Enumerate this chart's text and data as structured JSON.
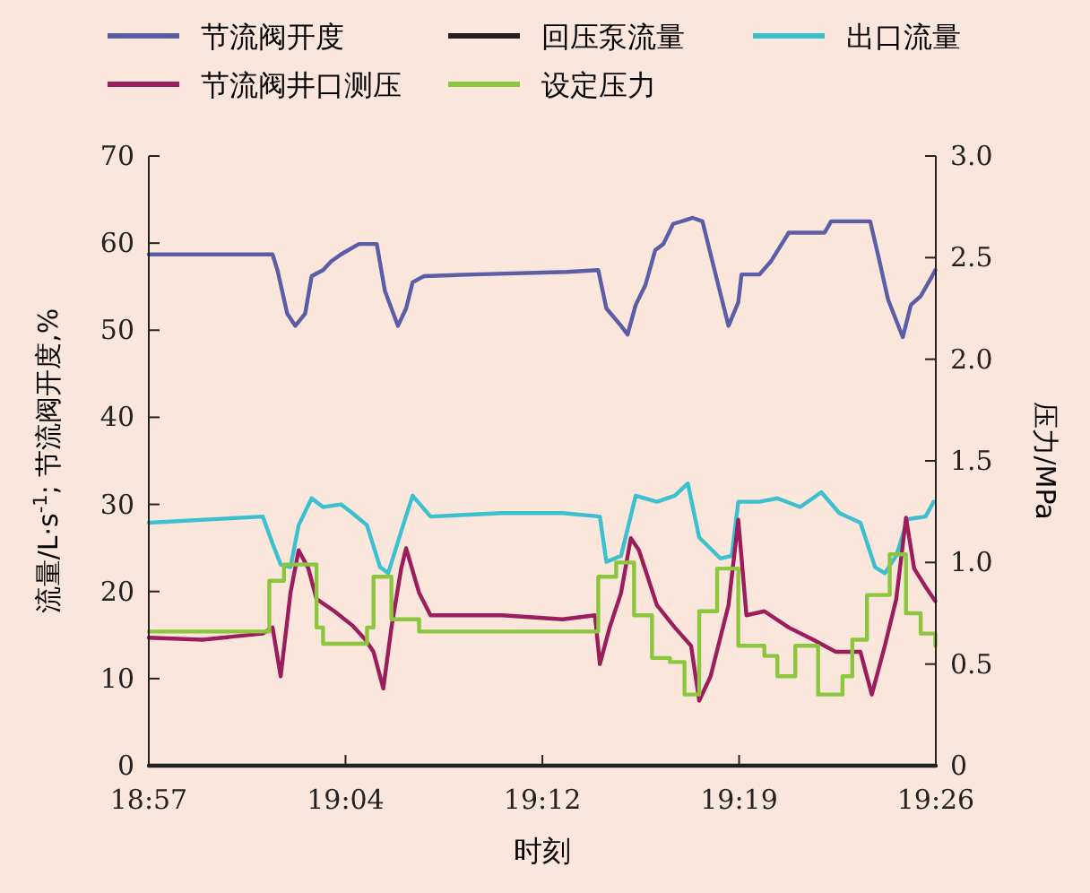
{
  "chart_data": {
    "type": "line",
    "xlabel": "时刻",
    "ylabel": "流量/L·s$^{-1}$; 节流阀开度,%",
    "y2label": "压力/MPa",
    "xlim": [
      18.95,
      19.4333
    ],
    "xticks": [
      {
        "value": 18.95,
        "label": "18:57"
      },
      {
        "value": 19.0708,
        "label": "19:04"
      },
      {
        "value": 19.1917,
        "label": "19:12"
      },
      {
        "value": 19.3125,
        "label": "19:19"
      },
      {
        "value": 19.4333,
        "label": "19:26"
      }
    ],
    "ylim": [
      0,
      70
    ],
    "yticks": [
      0,
      10,
      20,
      30,
      40,
      50,
      60,
      70
    ],
    "y2lim": [
      0,
      3
    ],
    "y2ticks": [
      0,
      {
        "value": 0.5,
        "label": "0.5"
      },
      {
        "value": 1,
        "label": "1.0"
      },
      {
        "value": 1.5,
        "label": "1.5"
      },
      {
        "value": 2,
        "label": "2.0"
      },
      {
        "value": 2.5,
        "label": "2.5"
      },
      {
        "value": 3,
        "label": "3.0"
      }
    ],
    "legend": "top",
    "grid": false,
    "marker": "none",
    "line_style": "solid",
    "series": [
      {
        "name": "节流阀开度",
        "color": "#5b5ea6",
        "x": [
          18.95,
          19.026,
          19.029,
          19.035,
          19.04,
          19.046,
          19.05,
          19.057,
          19.062,
          19.068,
          19.079,
          19.09,
          19.095,
          19.103,
          19.108,
          19.112,
          19.119,
          19.149,
          19.207,
          19.226,
          19.231,
          19.24,
          19.244,
          19.249,
          19.255,
          19.261,
          19.266,
          19.272,
          19.284,
          19.29,
          19.297,
          19.306,
          19.312,
          19.314,
          19.325,
          19.332,
          19.343,
          19.365,
          19.369,
          19.393,
          19.398,
          19.404,
          19.413,
          19.418,
          19.424,
          19.431,
          19.433
        ],
        "values": [
          58.7,
          58.7,
          56.9,
          51.9,
          50.5,
          51.9,
          56.2,
          56.9,
          57.9,
          58.7,
          59.9,
          59.9,
          54.5,
          50.5,
          52.5,
          55.5,
          56.2,
          56.4,
          56.7,
          56.9,
          52.5,
          50.5,
          49.5,
          52.9,
          55.2,
          59.2,
          59.9,
          62.2,
          62.9,
          62.5,
          57.2,
          50.5,
          53.2,
          56.4,
          56.4,
          57.9,
          61.2,
          61.2,
          62.5,
          62.5,
          58.5,
          53.5,
          49.2,
          52.9,
          53.9,
          56.2,
          56.9
        ]
      },
      {
        "name": "回压泵流量",
        "color": "#231f20",
        "x": [
          18.95,
          19.4333
        ],
        "values": [
          0,
          0
        ]
      },
      {
        "name": "出口流量",
        "color": "#3cc0cf",
        "x": [
          18.95,
          19.02,
          19.026,
          19.031,
          19.037,
          19.042,
          19.05,
          19.057,
          19.068,
          19.075,
          19.084,
          19.092,
          19.097,
          19.105,
          19.112,
          19.123,
          19.167,
          19.204,
          19.227,
          19.231,
          19.24,
          19.249,
          19.262,
          19.273,
          19.281,
          19.288,
          19.301,
          19.308,
          19.312,
          19.325,
          19.336,
          19.35,
          19.363,
          19.374,
          19.387,
          19.396,
          19.402,
          19.409,
          19.416,
          19.427,
          19.432
        ],
        "values": [
          27.9,
          28.6,
          25.5,
          23.1,
          22.8,
          27.6,
          30.7,
          29.7,
          30,
          29,
          27.6,
          22.8,
          22.1,
          26.9,
          31,
          28.6,
          29,
          29,
          28.6,
          23.4,
          24.1,
          31,
          30.3,
          31,
          32.4,
          26.2,
          23.8,
          24.1,
          30.3,
          30.3,
          30.7,
          29.7,
          31.4,
          29,
          27.9,
          22.8,
          22.1,
          24.1,
          28.3,
          28.6,
          30.3
        ]
      },
      {
        "name": "节流阀井口测压",
        "color": "#9b1d5c",
        "axis": "y2",
        "x": [
          18.95,
          18.983,
          19.02,
          19.026,
          19.031,
          19.037,
          19.042,
          19.048,
          19.053,
          19.064,
          19.075,
          19.083,
          19.088,
          19.094,
          19.099,
          19.105,
          19.108,
          19.116,
          19.123,
          19.167,
          19.204,
          19.224,
          19.227,
          19.233,
          19.24,
          19.246,
          19.251,
          19.262,
          19.273,
          19.283,
          19.288,
          19.295,
          19.306,
          19.312,
          19.317,
          19.328,
          19.343,
          19.358,
          19.372,
          19.387,
          19.394,
          19.402,
          19.409,
          19.415,
          19.42,
          19.427,
          19.433
        ],
        "values": [
          0.63,
          0.62,
          0.65,
          0.68,
          0.44,
          0.85,
          1.06,
          0.97,
          0.82,
          0.76,
          0.69,
          0.62,
          0.56,
          0.38,
          0.68,
          0.97,
          1.07,
          0.85,
          0.74,
          0.74,
          0.72,
          0.74,
          0.5,
          0.68,
          0.85,
          1.12,
          1.06,
          0.79,
          0.68,
          0.59,
          0.32,
          0.44,
          0.79,
          1.21,
          0.74,
          0.76,
          0.68,
          0.62,
          0.56,
          0.56,
          0.35,
          0.59,
          0.82,
          1.22,
          0.97,
          0.88,
          0.81
        ]
      },
      {
        "name": "设定压力",
        "color": "#8cc63f",
        "axis": "y2",
        "type": "step",
        "x": [
          18.95,
          19.024,
          19.033,
          19.053,
          19.057,
          19.084,
          19.088,
          19.099,
          19.116,
          19.226,
          19.237,
          19.248,
          19.259,
          19.27,
          19.279,
          19.288,
          19.299,
          19.312,
          19.328,
          19.336,
          19.347,
          19.361,
          19.376,
          19.382,
          19.391,
          19.405,
          19.415,
          19.424,
          19.433
        ],
        "values": [
          0.66,
          0.91,
          0.99,
          0.68,
          0.6,
          0.68,
          0.93,
          0.72,
          0.66,
          0.93,
          1.0,
          0.74,
          0.53,
          0.51,
          0.35,
          0.76,
          0.97,
          0.59,
          0.54,
          0.44,
          0.59,
          0.35,
          0.44,
          0.62,
          0.84,
          1.04,
          0.75,
          0.65,
          0.59
        ]
      }
    ]
  }
}
